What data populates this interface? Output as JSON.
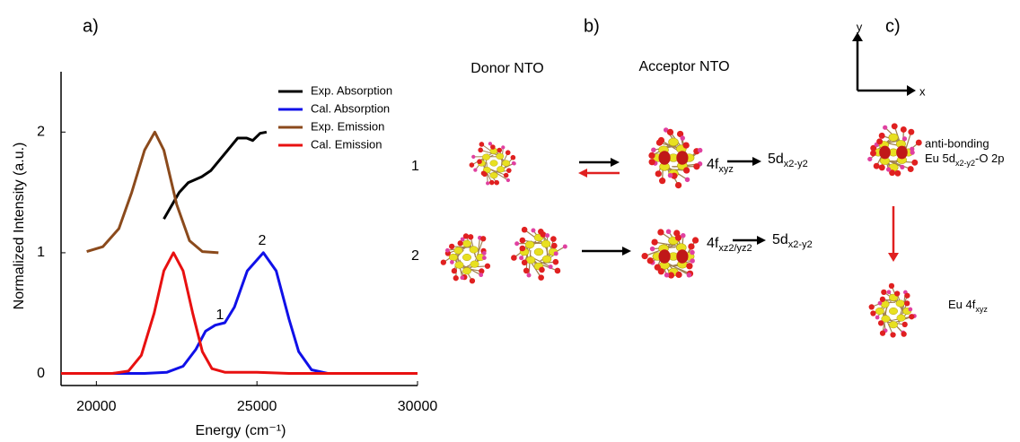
{
  "chart_data": {
    "type": "line",
    "panel_label": "a)",
    "xlabel": "Energy (cm⁻¹)",
    "ylabel": "Normalized Intensity (a.u.)",
    "xlim": [
      18900,
      30000
    ],
    "ylim": [
      -0.1,
      2.5
    ],
    "xticks": [
      20000,
      25000,
      30000
    ],
    "yticks": [
      0,
      1,
      2
    ],
    "legend": "upper right",
    "series": [
      {
        "name": "Exp. Absorption",
        "color": "#000000",
        "x": [
          22100,
          22580,
          22860,
          23280,
          23560,
          23840,
          24120,
          24400,
          24680,
          24870,
          25100,
          25300
        ],
        "values": [
          1.28,
          1.5,
          1.58,
          1.63,
          1.68,
          1.77,
          1.86,
          1.95,
          1.95,
          1.93,
          1.99,
          2.0
        ]
      },
      {
        "name": "Cal. Absorption",
        "color": "#1010e8",
        "x": [
          18900,
          21500,
          22200,
          22700,
          23100,
          23400,
          23700,
          24000,
          24300,
          24700,
          25200,
          25600,
          26000,
          26300,
          26700,
          27200,
          30000
        ],
        "values": [
          0,
          0,
          0.01,
          0.06,
          0.2,
          0.35,
          0.4,
          0.42,
          0.55,
          0.85,
          1.0,
          0.85,
          0.45,
          0.18,
          0.03,
          0,
          0
        ]
      },
      {
        "name": "Exp. Emission",
        "color": "#8b4a1c",
        "x": [
          19700,
          20200,
          20700,
          21100,
          21500,
          21820,
          22100,
          22500,
          22900,
          23300,
          23800
        ],
        "values": [
          1.01,
          1.05,
          1.2,
          1.5,
          1.85,
          2.0,
          1.85,
          1.4,
          1.1,
          1.01,
          1.0
        ]
      },
      {
        "name": "Cal. Emission",
        "color": "#e81010",
        "x": [
          18900,
          20500,
          21000,
          21400,
          21800,
          22100,
          22400,
          22700,
          23000,
          23300,
          23600,
          24000,
          25000,
          26000,
          30000
        ],
        "values": [
          0,
          0,
          0.02,
          0.15,
          0.5,
          0.85,
          1.0,
          0.85,
          0.5,
          0.18,
          0.04,
          0.01,
          0.01,
          0,
          0
        ]
      }
    ],
    "annotations": [
      "1",
      "2"
    ]
  },
  "panel_b": {
    "label": "b)",
    "donor_header": "Donor NTO",
    "acceptor_header": "Acceptor NTO",
    "rows": [
      {
        "label": "1",
        "from": {
          "base": "4f",
          "sub": "xyz"
        },
        "to": {
          "base": "5d",
          "sub": "x2-y2"
        }
      },
      {
        "label": "2",
        "from": {
          "base": "4f",
          "sub": "xz2/yz2"
        },
        "to": {
          "base": "5d",
          "sub": "x2-y2"
        }
      }
    ]
  },
  "panel_c": {
    "label": "c)",
    "axis_y": "y",
    "axis_x": "x",
    "top_line1": "anti-bonding",
    "top_line2": {
      "base": "Eu 5d",
      "sub": "x2-y2",
      "tail": "-O 2p"
    },
    "bottom": {
      "base": "Eu 4f",
      "sub": "xyz"
    }
  }
}
